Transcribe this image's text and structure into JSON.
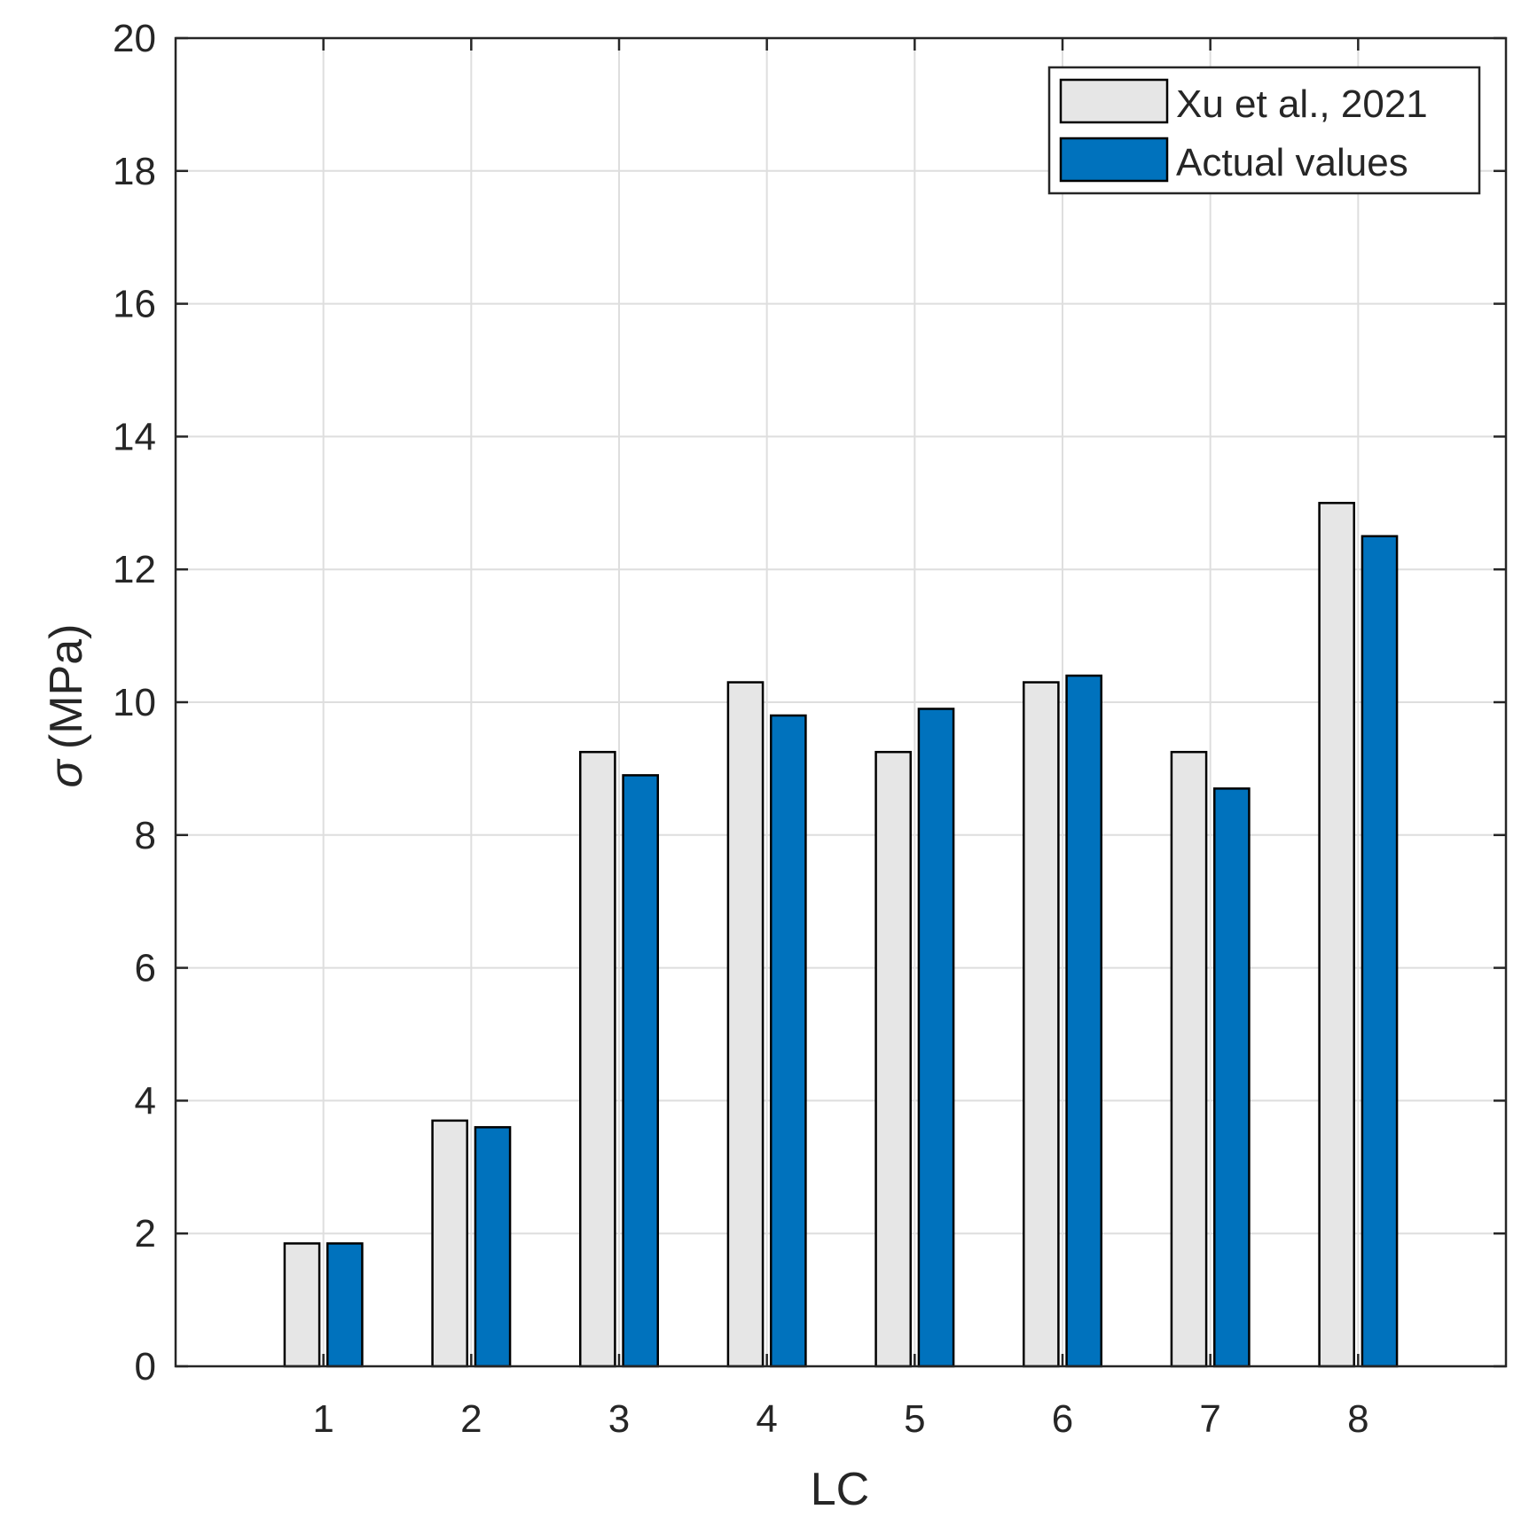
{
  "chart_data": {
    "type": "bar",
    "xlabel": "LC",
    "ylabel_symbol": "σ",
    "ylabel_unit": "(MPa)",
    "categories": [
      "1",
      "2",
      "3",
      "4",
      "5",
      "6",
      "7",
      "8"
    ],
    "x_range": [
      0,
      9
    ],
    "ylim": [
      0,
      20
    ],
    "yticks": [
      0,
      2,
      4,
      6,
      8,
      10,
      12,
      14,
      16,
      18,
      20
    ],
    "grid": true,
    "legend_position": "top-right",
    "series": [
      {
        "name": "Xu et al., 2021",
        "color": "#e6e6e6",
        "values": [
          1.85,
          3.7,
          9.25,
          10.3,
          9.25,
          10.3,
          9.25,
          13.0
        ]
      },
      {
        "name": "Actual values",
        "color": "#0072bd",
        "values": [
          1.85,
          3.6,
          8.9,
          9.8,
          9.9,
          10.4,
          8.7,
          12.5
        ]
      }
    ]
  }
}
